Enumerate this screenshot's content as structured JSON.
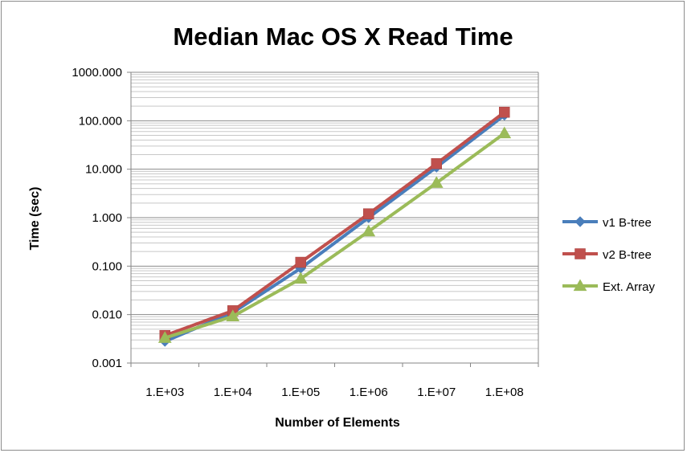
{
  "chart_data": {
    "type": "line",
    "title": "Median Mac OS X Read Time",
    "xlabel": "Number of Elements",
    "ylabel": "Time (sec)",
    "x_scale": "log",
    "y_scale": "log",
    "x": [
      1000,
      10000,
      100000,
      1000000,
      10000000,
      100000000
    ],
    "x_tick_labels": [
      "1.E+03",
      "1.E+04",
      "1.E+05",
      "1.E+06",
      "1.E+07",
      "1.E+08"
    ],
    "y_tick_values": [
      0.001,
      0.01,
      0.1,
      1,
      10,
      100,
      1000
    ],
    "y_tick_labels": [
      "0.001",
      "0.010",
      "0.100",
      "1.000",
      "10.000",
      "100.000",
      "1000.000"
    ],
    "ylim": [
      0.001,
      1000
    ],
    "grid": true,
    "minor_grid": true,
    "legend_position": "right",
    "series": [
      {
        "name": "v1 B-tree",
        "color": "#4a7ebb",
        "marker": "diamond",
        "values": [
          0.0028,
          0.011,
          0.09,
          1.0,
          11,
          130
        ]
      },
      {
        "name": "v2 B-tree",
        "color": "#c0504d",
        "marker": "square",
        "values": [
          0.0037,
          0.012,
          0.12,
          1.2,
          13,
          150
        ]
      },
      {
        "name": "Ext. Array",
        "color": "#9bbb59",
        "marker": "triangle",
        "values": [
          0.0033,
          0.0092,
          0.055,
          0.52,
          5.2,
          55
        ]
      }
    ]
  }
}
